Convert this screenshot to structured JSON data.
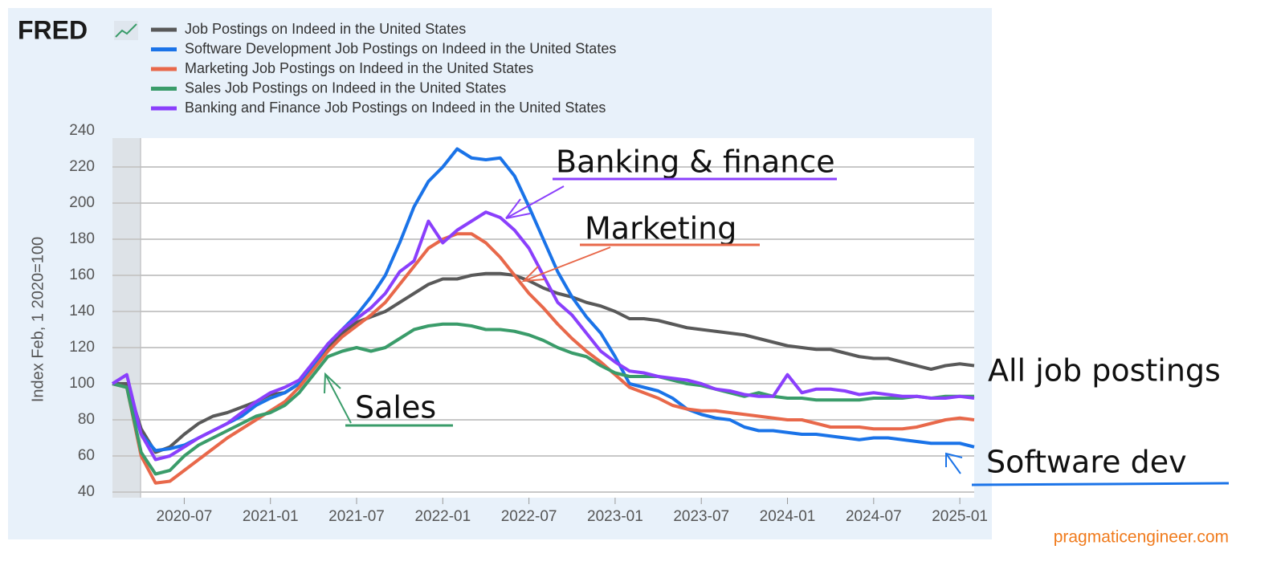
{
  "chart_data": {
    "type": "line",
    "logo": "FRED",
    "y_label": "Index Feb, 1 2020=100",
    "source": "pragmaticengineer.com",
    "x": [
      "2020-02",
      "2020-03",
      "2020-04",
      "2020-05",
      "2020-06",
      "2020-07",
      "2020-08",
      "2020-09",
      "2020-10",
      "2020-11",
      "2020-12",
      "2021-01",
      "2021-02",
      "2021-03",
      "2021-04",
      "2021-05",
      "2021-06",
      "2021-07",
      "2021-08",
      "2021-09",
      "2021-10",
      "2021-11",
      "2021-12",
      "2022-01",
      "2022-02",
      "2022-03",
      "2022-04",
      "2022-05",
      "2022-06",
      "2022-07",
      "2022-08",
      "2022-09",
      "2022-10",
      "2022-11",
      "2022-12",
      "2023-01",
      "2023-02",
      "2023-03",
      "2023-04",
      "2023-05",
      "2023-06",
      "2023-07",
      "2023-08",
      "2023-09",
      "2023-10",
      "2023-11",
      "2023-12",
      "2024-01",
      "2024-02",
      "2024-03",
      "2024-04",
      "2024-05",
      "2024-06",
      "2024-07",
      "2024-08",
      "2024-09",
      "2024-10",
      "2024-11",
      "2024-12",
      "2025-01",
      "2025-02"
    ],
    "xlim": [
      "2020-02",
      "2025-02"
    ],
    "xticks": [
      "2020-07",
      "2021-01",
      "2021-07",
      "2022-01",
      "2022-07",
      "2023-01",
      "2023-07",
      "2024-01",
      "2024-07",
      "2025-01"
    ],
    "ylim": [
      40,
      240
    ],
    "yticks": [
      40,
      60,
      80,
      100,
      120,
      140,
      160,
      180,
      200,
      220,
      240
    ],
    "grid": true,
    "recession_shading": [
      "2020-02",
      "2020-04"
    ],
    "series": [
      {
        "name": "Job Postings on Indeed in the United States",
        "color": "#595959",
        "values": [
          100,
          100,
          75,
          62,
          65,
          72,
          78,
          82,
          84,
          87,
          90,
          94,
          95,
          100,
          110,
          120,
          128,
          134,
          137,
          140,
          145,
          150,
          155,
          158,
          158,
          160,
          161,
          161,
          160,
          157,
          153,
          150,
          148,
          145,
          143,
          140,
          136,
          136,
          135,
          133,
          131,
          130,
          129,
          128,
          127,
          125,
          123,
          121,
          120,
          119,
          119,
          117,
          115,
          114,
          114,
          112,
          110,
          108,
          110,
          111,
          110
        ]
      },
      {
        "name": "Software Development Job Postings on Indeed in the United States",
        "color": "#1a73e8",
        "values": [
          100,
          98,
          72,
          63,
          64,
          66,
          70,
          74,
          78,
          82,
          88,
          92,
          95,
          100,
          110,
          122,
          130,
          138,
          148,
          160,
          178,
          198,
          212,
          220,
          230,
          225,
          224,
          225,
          215,
          198,
          180,
          162,
          148,
          137,
          128,
          115,
          100,
          98,
          96,
          92,
          86,
          83,
          81,
          80,
          76,
          74,
          74,
          73,
          72,
          72,
          71,
          70,
          69,
          70,
          70,
          69,
          68,
          67,
          67,
          67,
          65
        ]
      },
      {
        "name": "Marketing Job Postings on Indeed in the United States",
        "color": "#e8684a",
        "values": [
          100,
          98,
          60,
          45,
          46,
          52,
          58,
          64,
          70,
          75,
          80,
          85,
          90,
          98,
          108,
          118,
          126,
          132,
          138,
          145,
          155,
          165,
          175,
          180,
          183,
          183,
          178,
          170,
          160,
          150,
          142,
          133,
          125,
          118,
          112,
          105,
          98,
          95,
          92,
          88,
          86,
          85,
          85,
          84,
          83,
          82,
          81,
          80,
          80,
          78,
          76,
          76,
          76,
          75,
          75,
          75,
          76,
          78,
          80,
          81,
          80
        ]
      },
      {
        "name": "Sales Job Postings on Indeed in the United States",
        "color": "#3a9c6a",
        "values": [
          100,
          98,
          62,
          50,
          52,
          60,
          66,
          70,
          74,
          78,
          82,
          84,
          88,
          95,
          105,
          115,
          118,
          120,
          118,
          120,
          125,
          130,
          132,
          133,
          133,
          132,
          130,
          130,
          129,
          127,
          124,
          120,
          117,
          115,
          110,
          106,
          104,
          104,
          104,
          102,
          100,
          99,
          97,
          95,
          93,
          95,
          93,
          92,
          92,
          91,
          91,
          91,
          91,
          92,
          92,
          92,
          93,
          92,
          93,
          93,
          93
        ]
      },
      {
        "name": "Banking and Finance Job Postings on Indeed in the United States",
        "color": "#8a3ffc",
        "values": [
          100,
          105,
          72,
          58,
          60,
          65,
          70,
          74,
          78,
          84,
          90,
          95,
          98,
          102,
          112,
          122,
          130,
          136,
          142,
          150,
          162,
          168,
          190,
          178,
          185,
          190,
          195,
          192,
          185,
          175,
          160,
          145,
          138,
          128,
          118,
          112,
          107,
          106,
          104,
          103,
          102,
          100,
          97,
          96,
          94,
          93,
          93,
          105,
          95,
          97,
          97,
          96,
          94,
          95,
          94,
          93,
          93,
          92,
          92,
          93,
          92
        ]
      }
    ],
    "annotations": [
      "Banking & finance",
      "Marketing",
      "Sales",
      "All job postings",
      "Software dev"
    ]
  }
}
